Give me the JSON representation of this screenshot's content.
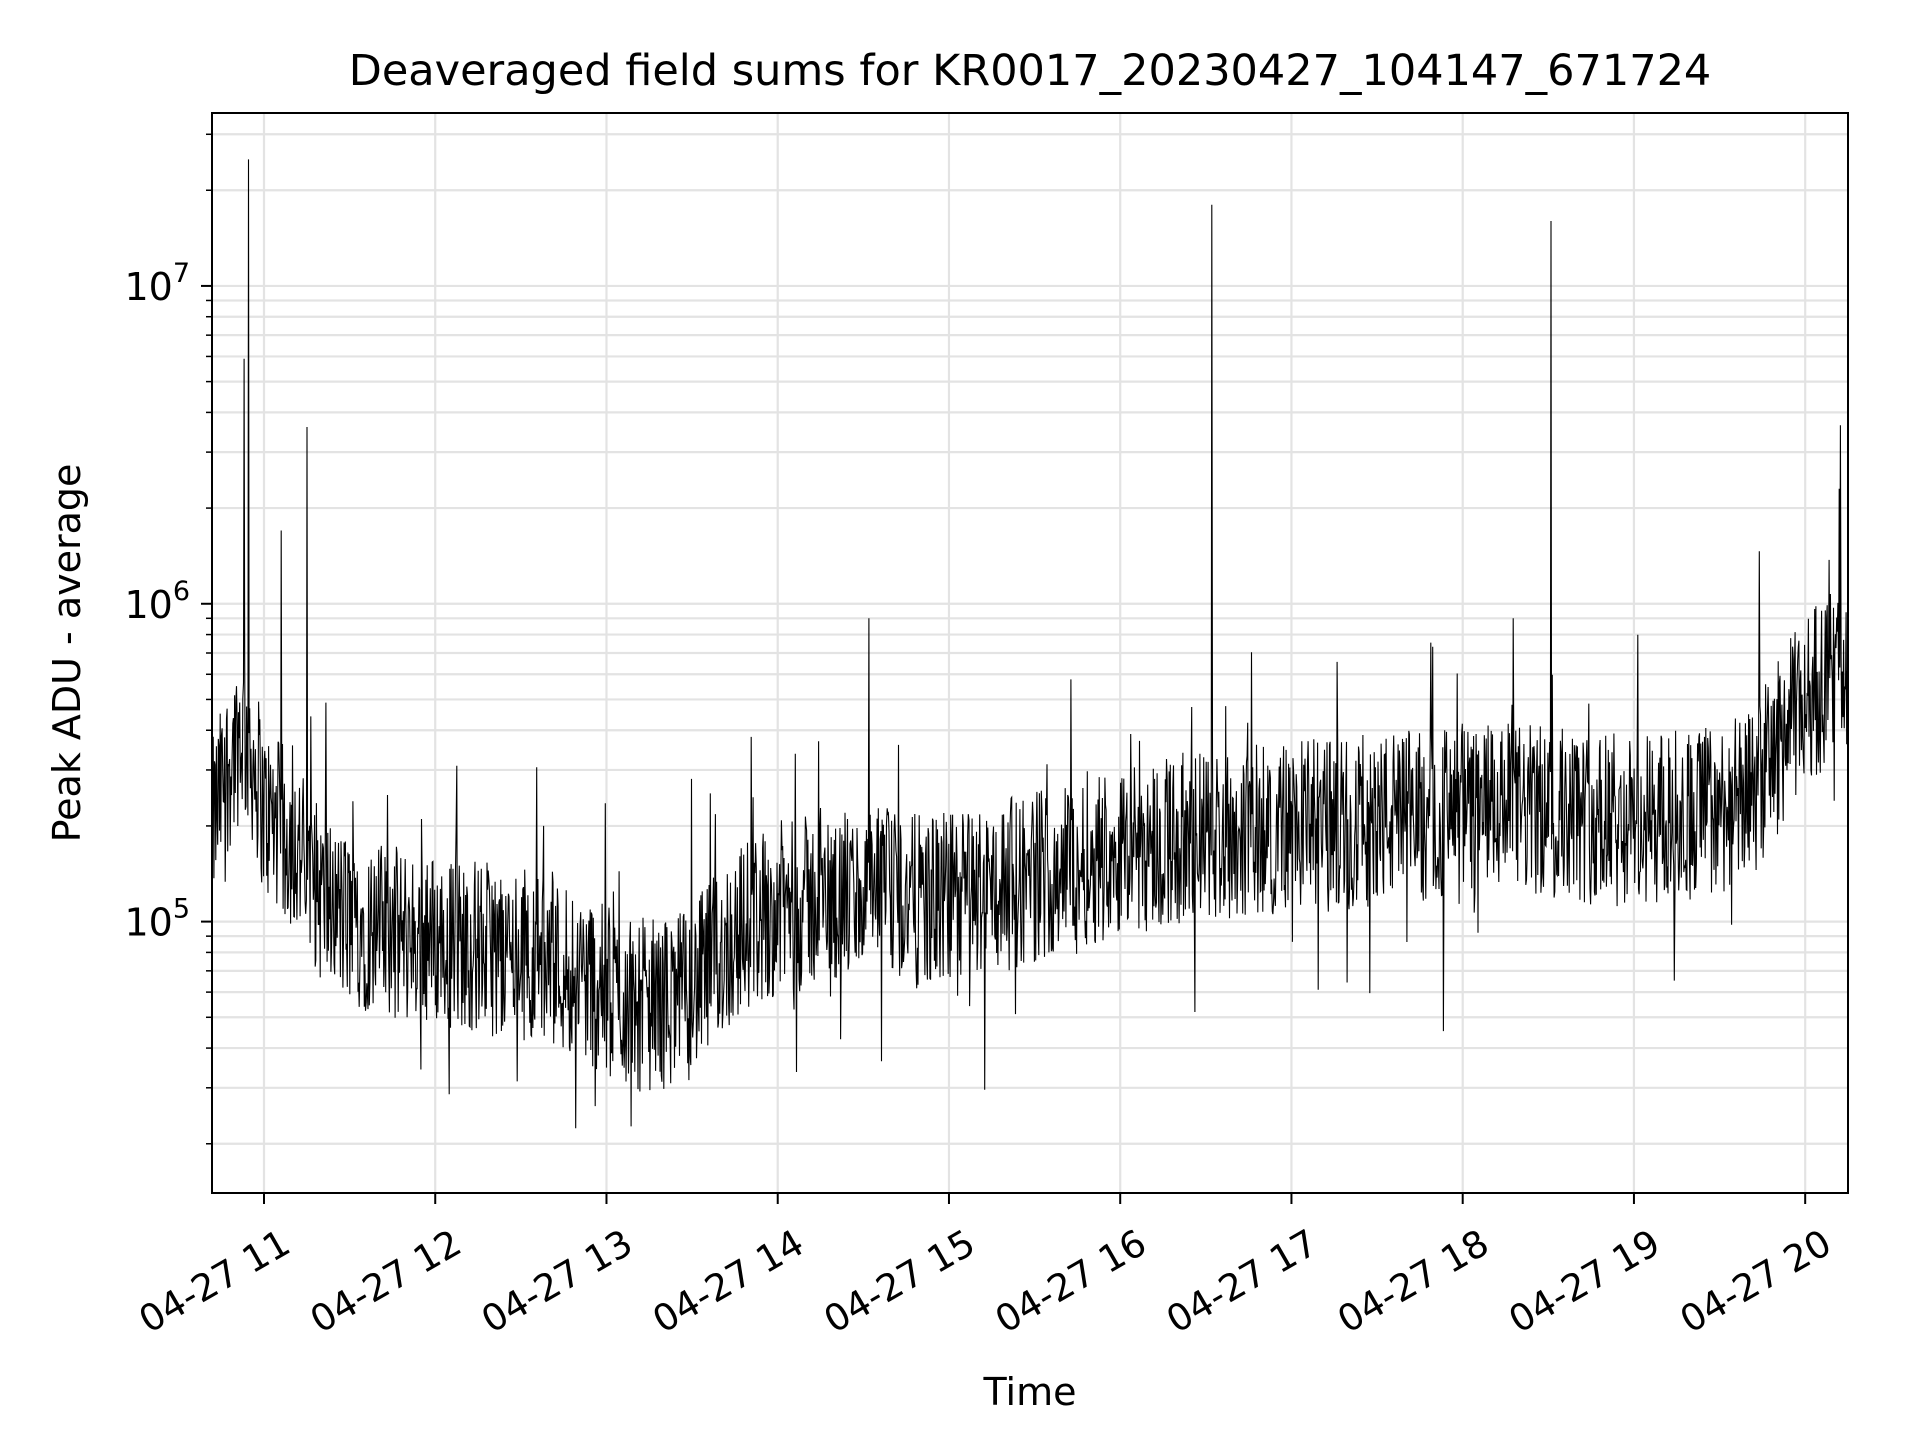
{
  "chart_data": {
    "type": "line",
    "title": "Deaveraged field sums for KR0017_20230427_104147_671724",
    "xlabel": "Time",
    "ylabel": "Peak ADU - average",
    "x_scale": "time",
    "y_scale": "log",
    "xlim": [
      "2023-04-27T10:41:47",
      "2023-04-27T20:15:00"
    ],
    "ylim": [
      14000,
      35000000
    ],
    "grid": true,
    "legend": "none",
    "line_color": "#000000",
    "x_ticks": [
      {
        "value": "2023-04-27T11:00:00",
        "label": "04-27 11"
      },
      {
        "value": "2023-04-27T12:00:00",
        "label": "04-27 12"
      },
      {
        "value": "2023-04-27T13:00:00",
        "label": "04-27 13"
      },
      {
        "value": "2023-04-27T14:00:00",
        "label": "04-27 14"
      },
      {
        "value": "2023-04-27T15:00:00",
        "label": "04-27 15"
      },
      {
        "value": "2023-04-27T16:00:00",
        "label": "04-27 16"
      },
      {
        "value": "2023-04-27T17:00:00",
        "label": "04-27 17"
      },
      {
        "value": "2023-04-27T18:00:00",
        "label": "04-27 18"
      },
      {
        "value": "2023-04-27T19:00:00",
        "label": "04-27 19"
      },
      {
        "value": "2023-04-27T20:00:00",
        "label": "04-27 20"
      }
    ],
    "y_ticks": [
      {
        "value": 100000,
        "base": "10",
        "exp": "5"
      },
      {
        "value": 1000000,
        "base": "10",
        "exp": "6"
      },
      {
        "value": 10000000,
        "base": "10",
        "exp": "7"
      }
    ],
    "series": [
      {
        "x": [
          "2023-04-27T10:42:00",
          "2023-04-27T10:47:00",
          "2023-04-27T10:52:00",
          "2023-04-27T10:55:00",
          "2023-04-27T10:58:00",
          "2023-04-27T11:00:00",
          "2023-04-27T11:05:00",
          "2023-04-27T11:10:00",
          "2023-04-27T11:15:00",
          "2023-04-27T11:20:00",
          "2023-04-27T11:30:00",
          "2023-04-27T11:40:00",
          "2023-04-27T11:50:00",
          "2023-04-27T12:00:00",
          "2023-04-27T12:10:00",
          "2023-04-27T12:20:00",
          "2023-04-27T12:30:00",
          "2023-04-27T12:40:00",
          "2023-04-27T12:50:00",
          "2023-04-27T13:00:00",
          "2023-04-27T13:10:00",
          "2023-04-27T13:20:00",
          "2023-04-27T13:30:00",
          "2023-04-27T13:40:00",
          "2023-04-27T13:50:00",
          "2023-04-27T14:00:00",
          "2023-04-27T14:10:00",
          "2023-04-27T14:20:00",
          "2023-04-27T14:30:00",
          "2023-04-27T14:40:00",
          "2023-04-27T14:50:00",
          "2023-04-27T15:00:00",
          "2023-04-27T15:10:00",
          "2023-04-27T15:20:00",
          "2023-04-27T15:30:00",
          "2023-04-27T15:40:00",
          "2023-04-27T15:50:00",
          "2023-04-27T16:00:00",
          "2023-04-27T16:10:00",
          "2023-04-27T16:20:00",
          "2023-04-27T16:30:00",
          "2023-04-27T16:40:00",
          "2023-04-27T16:50:00",
          "2023-04-27T17:00:00",
          "2023-04-27T17:10:00",
          "2023-04-27T17:20:00",
          "2023-04-27T17:30:00",
          "2023-04-27T17:40:00",
          "2023-04-27T17:50:00",
          "2023-04-27T18:00:00",
          "2023-04-27T18:10:00",
          "2023-04-27T18:20:00",
          "2023-04-27T18:30:00",
          "2023-04-27T18:40:00",
          "2023-04-27T18:50:00",
          "2023-04-27T19:00:00",
          "2023-04-27T19:10:00",
          "2023-04-27T19:20:00",
          "2023-04-27T19:30:00",
          "2023-04-27T19:40:00",
          "2023-04-27T19:50:00",
          "2023-04-27T20:00:00",
          "2023-04-27T20:10:00",
          "2023-04-27T20:15:00"
        ],
        "y": [
          200000,
          300000,
          400000,
          350000,
          280000,
          220000,
          200000,
          180000,
          150000,
          120000,
          100000,
          95000,
          90000,
          88000,
          85000,
          82000,
          80000,
          75000,
          70000,
          60000,
          55000,
          55000,
          60000,
          80000,
          100000,
          110000,
          115000,
          118000,
          120000,
          122000,
          115000,
          118000,
          125000,
          130000,
          140000,
          150000,
          160000,
          170000,
          175000,
          180000,
          185000,
          190000,
          195000,
          200000,
          200000,
          205000,
          210000,
          215000,
          220000,
          220000,
          225000,
          225000,
          220000,
          215000,
          210000,
          205000,
          210000,
          220000,
          230000,
          240000,
          350000,
          500000,
          600000,
          650000
        ]
      }
    ],
    "spikes": [
      {
        "x": "2023-04-27T10:54:30",
        "y": 25000000
      },
      {
        "x": "2023-04-27T10:53:00",
        "y": 5900000
      },
      {
        "x": "2023-04-27T11:15:00",
        "y": 3600000
      },
      {
        "x": "2023-04-27T11:06:00",
        "y": 1700000
      },
      {
        "x": "2023-04-27T14:32:00",
        "y": 900000
      },
      {
        "x": "2023-04-27T16:32:00",
        "y": 18000000
      },
      {
        "x": "2023-04-27T18:31:00",
        "y": 16000000
      },
      {
        "x": "2023-04-27T20:12:00",
        "y": 2300000
      }
    ]
  }
}
